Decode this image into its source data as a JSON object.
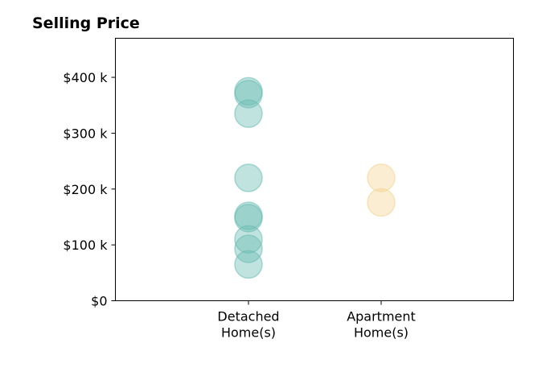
{
  "chart_data": {
    "type": "scatter",
    "title": "Selling Price",
    "xlabel": "",
    "ylabel": "",
    "categories": [
      "Detached\nHome(s)",
      "Apartment\nHome(s)"
    ],
    "ylim": [
      0,
      470000
    ],
    "yticks": [
      {
        "value": 0,
        "label": "$0"
      },
      {
        "value": 100000,
        "label": "$100 k"
      },
      {
        "value": 200000,
        "label": "$200 k"
      },
      {
        "value": 300000,
        "label": "$300 k"
      },
      {
        "value": 400000,
        "label": "$400 k"
      }
    ],
    "grid": false,
    "series": [
      {
        "category": "Detached\nHome(s)",
        "color": "#69bcb2",
        "values": [
          375000,
          370000,
          335000,
          220000,
          152000,
          148000,
          110000,
          93000,
          65000
        ]
      },
      {
        "category": "Apartment\nHome(s)",
        "color": "#f3d494",
        "values": [
          220000,
          176000
        ]
      }
    ]
  }
}
